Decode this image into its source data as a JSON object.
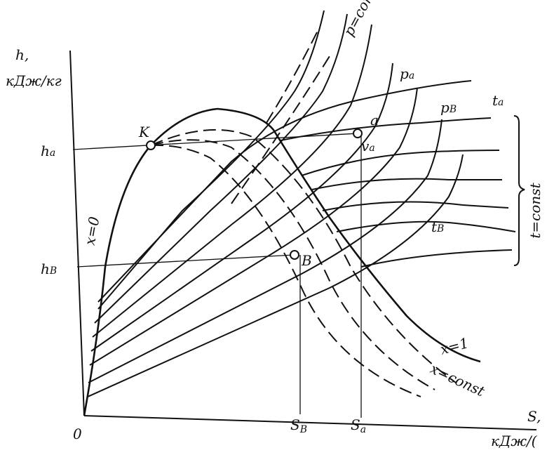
{
  "axes": {
    "y_label": "h,",
    "y_unit": "кДж/кг",
    "x_label": "S,",
    "x_unit": "кДж/(",
    "origin": "0"
  },
  "ticks": {
    "h_a": {
      "base": "h",
      "sub": "a"
    },
    "h_b": {
      "base": "h",
      "sub": "B"
    },
    "s_b": {
      "base": "S",
      "sub": "B"
    },
    "s_a": {
      "base": "S",
      "sub": "a"
    }
  },
  "points": {
    "k": "K",
    "a": "a",
    "v_a": {
      "base": "v",
      "sub": "a"
    },
    "b": "B"
  },
  "curves": {
    "p_const": "p=const",
    "p_a": {
      "base": "p",
      "sub": "a"
    },
    "p_b": {
      "base": "p",
      "sub": "B"
    },
    "t_a": {
      "base": "t",
      "sub": "a"
    },
    "t_b": {
      "base": "t",
      "sub": "B"
    },
    "t_const": "t=const",
    "x0": "x=0",
    "x1": "x=1",
    "x_const": "x=const"
  }
}
